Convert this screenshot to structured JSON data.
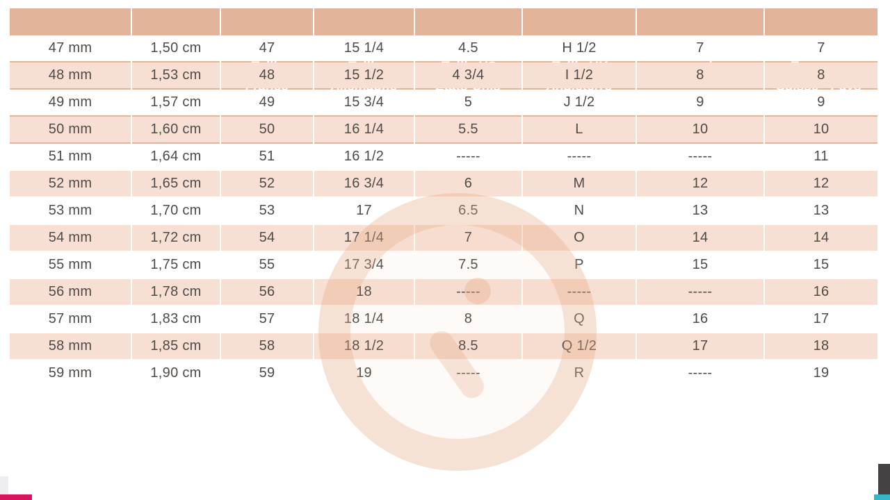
{
  "table": {
    "headers": [
      "Taille circonférence (mm)",
      "Diamètre intérieur (mm)",
      "Taille France",
      "Taille Allemagne",
      "Taille US États-Unis",
      "Taille UK Angleterre",
      "Taille Japon - Inde - Amérique du sud",
      "Taille Italie - Espagne - Suisse - Pays-Bas"
    ],
    "rows": [
      [
        "47 mm",
        "1,50 cm",
        "47",
        "15 1/4",
        "4.5",
        "H 1/2",
        "7",
        "7"
      ],
      [
        "48 mm",
        "1,53 cm",
        "48",
        "15 1/2",
        "4 3/4",
        "I 1/2",
        "8",
        "8"
      ],
      [
        "49 mm",
        "1,57 cm",
        "49",
        "15 3/4",
        "5",
        "J 1/2",
        "9",
        "9"
      ],
      [
        "50 mm",
        "1,60 cm",
        "50",
        "16 1/4",
        "5.5",
        "L",
        "10",
        "10"
      ],
      [
        "51 mm",
        "1,64 cm",
        "51",
        "16 1/2",
        "-----",
        "-----",
        "-----",
        "11"
      ],
      [
        "52 mm",
        "1,65 cm",
        "52",
        "16 3/4",
        "6",
        "M",
        "12",
        "12"
      ],
      [
        "53 mm",
        "1,70 cm",
        "53",
        "17",
        "6.5",
        "N",
        "13",
        "13"
      ],
      [
        "54 mm",
        "1,72 cm",
        "54",
        "17 1/4",
        "7",
        "O",
        "14",
        "14"
      ],
      [
        "55 mm",
        "1,75 cm",
        "55",
        "17 3/4",
        "7.5",
        "P",
        "15",
        "15"
      ],
      [
        "56 mm",
        "1,78 cm",
        "56",
        "18",
        "-----",
        "-----",
        "-----",
        "16"
      ],
      [
        "57 mm",
        "1,83 cm",
        "57",
        "18 1/4",
        "8",
        "Q",
        "16",
        "17"
      ],
      [
        "58 mm",
        "1,85 cm",
        "58",
        "18 1/2",
        "8.5",
        "Q 1/2",
        "17",
        "18"
      ],
      [
        "59 mm",
        "1,90 cm",
        "59",
        "19",
        "-----",
        "R",
        "-----",
        "19"
      ]
    ]
  },
  "colors": {
    "header_bg": "#e3b49c",
    "row_alt_bg": "#f7e0d3",
    "row_bg": "#ffffff",
    "header_text": "#fdfbf8",
    "data_text": "#4e4a47",
    "watermark": "#e4a683",
    "accent_magenta": "#d6155f",
    "accent_charcoal": "#454243",
    "accent_teal": "#38b6c9"
  }
}
